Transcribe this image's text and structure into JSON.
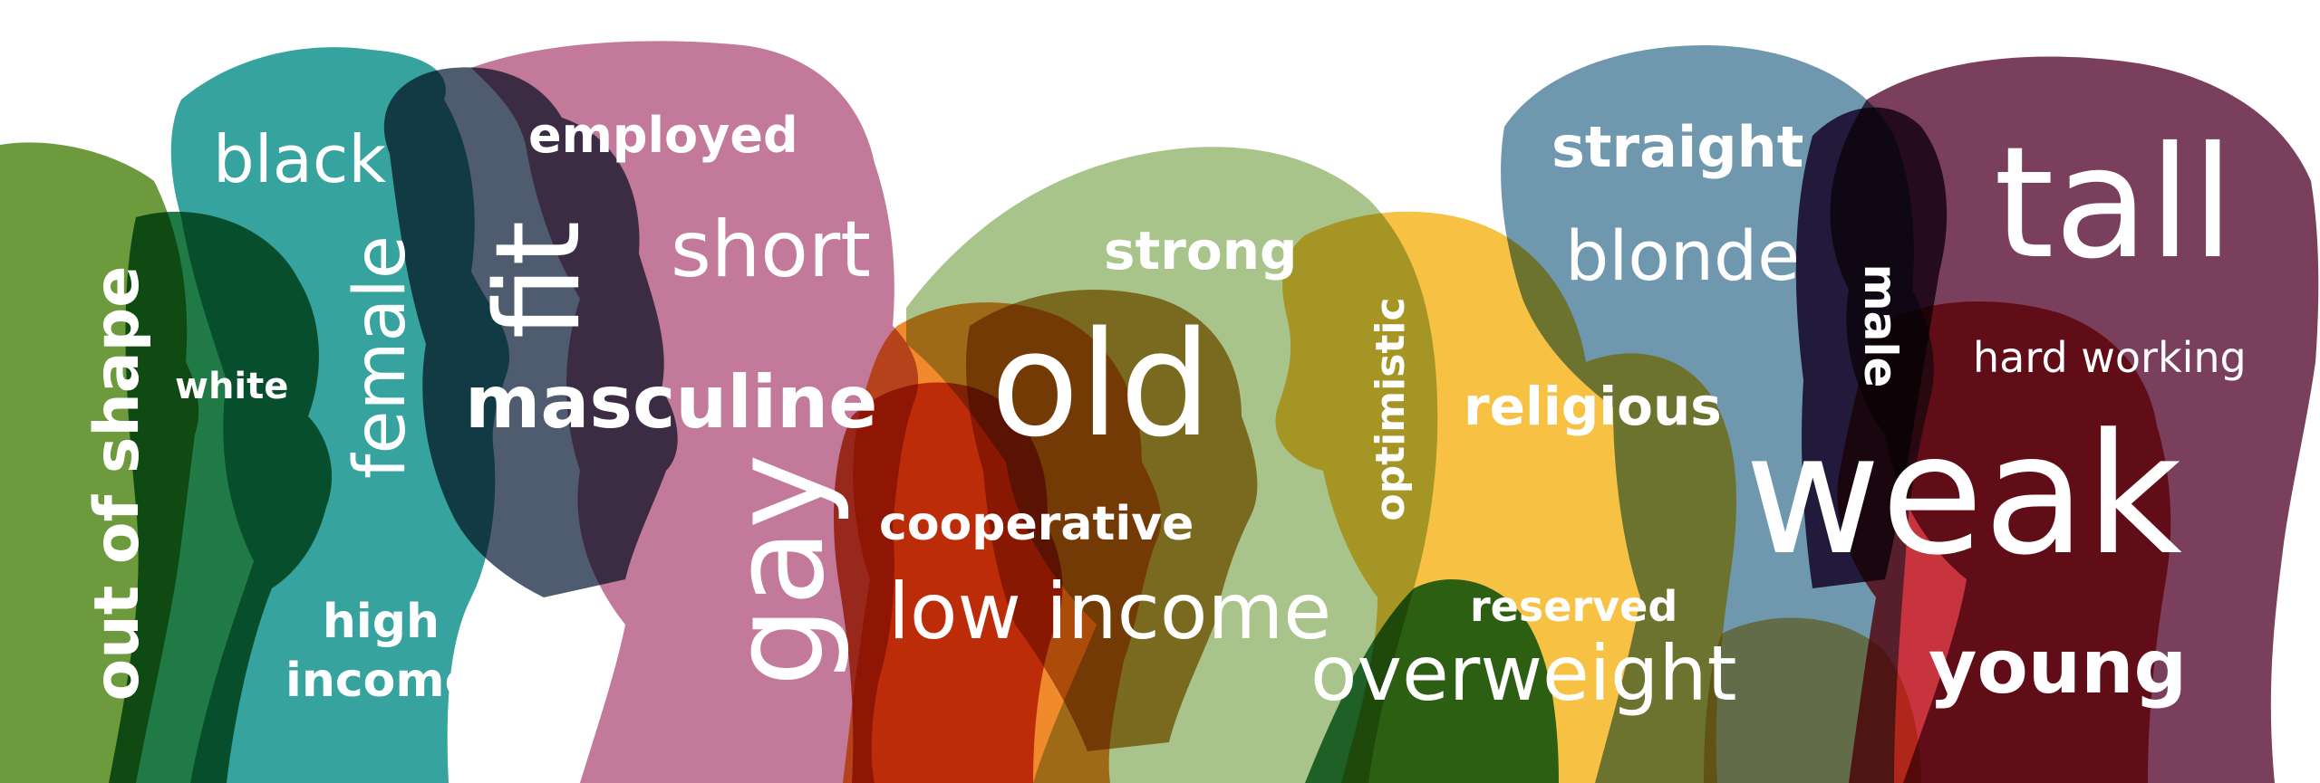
{
  "palette": {
    "green": "#6E9A3E",
    "dark_green": "#1F7A46",
    "teal": "#36A39E",
    "slate": "#4F5B6E",
    "pink": "#C2799A",
    "sage": "#A9C48A",
    "orange": "#F08A2C",
    "rust": "#C8512E",
    "olive": "#B88A3A",
    "yellow": "#F7C243",
    "steel_blue": "#6F97AE",
    "plum": "#7A3F5C",
    "deep_purple": "#4A2C55",
    "red": "#C8343E",
    "tan": "#E2B76A",
    "forest": "#2E7D46",
    "white": "#FFFFFF"
  },
  "words": {
    "out_of_shape": "out of shape",
    "black": "black",
    "white": "white",
    "female": "female",
    "high_income": "high\nincome",
    "employed": "employed",
    "fit": "fit",
    "short": "short",
    "masculine": "masculine",
    "gay": "gay",
    "strong": "strong",
    "old": "old",
    "cooperative": "cooperative",
    "low_income": "low income",
    "optimistic": "optimistic",
    "religious": "religious",
    "reserved": "reserved",
    "overweight": "overweight",
    "straight": "straight",
    "blonde": "blonde",
    "male": "male",
    "tall": "tall",
    "hard_working": "hard working",
    "weak": "weak",
    "young": "young"
  }
}
